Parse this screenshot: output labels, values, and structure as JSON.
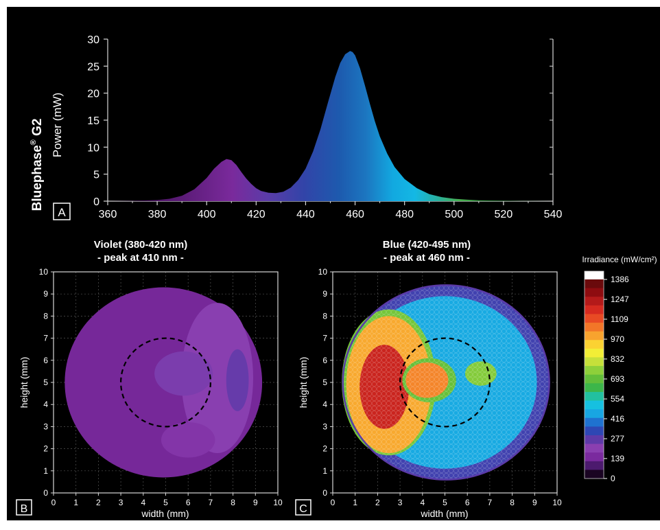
{
  "figure": {
    "background": "#000000",
    "panel_labels": [
      "A",
      "B",
      "C"
    ]
  },
  "chart_data": [
    {
      "type": "area",
      "panel": "A",
      "device_label": "Bluephase",
      "device_label_super": "®",
      "device_label_suffix": " G2",
      "ylabel": "Power (mW)",
      "xlim": [
        360,
        540
      ],
      "ylim": [
        0,
        30
      ],
      "xticks": [
        360,
        380,
        400,
        420,
        440,
        460,
        480,
        500,
        520,
        540
      ],
      "yticks": [
        0,
        5,
        10,
        15,
        20,
        25,
        30
      ],
      "x": [
        360,
        370,
        380,
        385,
        390,
        395,
        400,
        403,
        406,
        408,
        410,
        412,
        414,
        416,
        418,
        420,
        422,
        425,
        428,
        431,
        434,
        437,
        440,
        443,
        446,
        449,
        452,
        454,
        456,
        458,
        459,
        460,
        462,
        464,
        466,
        468,
        470,
        473,
        476,
        480,
        485,
        490,
        495,
        500,
        505,
        510,
        520,
        530,
        540
      ],
      "y": [
        0.0,
        0.05,
        0.2,
        0.45,
        1.0,
        2.2,
        4.3,
        6.0,
        7.3,
        7.8,
        7.6,
        6.7,
        5.4,
        4.2,
        3.2,
        2.4,
        1.9,
        1.55,
        1.5,
        1.75,
        2.5,
        3.9,
        6.0,
        9.2,
        13.3,
        18.2,
        23.0,
        25.6,
        27.2,
        27.8,
        27.6,
        27.0,
        24.6,
        21.4,
        18.0,
        14.8,
        12.0,
        8.8,
        6.3,
        4.1,
        2.4,
        1.3,
        0.75,
        0.45,
        0.28,
        0.17,
        0.07,
        0.03,
        0.0
      ]
    },
    {
      "type": "heatmap",
      "panel": "B",
      "title": "Violet (380-420 nm)",
      "subtitle": "- peak at 410 nm -",
      "xlabel": "width (mm)",
      "ylabel": "height (mm)",
      "xlim": [
        0,
        10
      ],
      "ylim": [
        0,
        10
      ],
      "xticks": [
        0,
        1,
        2,
        3,
        4,
        5,
        6,
        7,
        8,
        9,
        10
      ],
      "yticks": [
        0,
        1,
        2,
        3,
        4,
        5,
        6,
        7,
        8,
        9,
        10
      ],
      "beam_center": [
        5.0,
        5.0
      ],
      "beam_radius_x": 4.4,
      "beam_radius_y": 4.3,
      "reference_circle": {
        "center": [
          5,
          5
        ],
        "radius": 2
      },
      "regions": [
        {
          "type": "disc",
          "cx": 4.9,
          "cy": 5.0,
          "rx": 4.4,
          "ry": 4.3,
          "irradiance": 120
        },
        {
          "type": "disc",
          "cx": 7.3,
          "cy": 5.2,
          "rx": 1.6,
          "ry": 3.4,
          "irradiance": 190
        },
        {
          "type": "disc",
          "cx": 5.8,
          "cy": 5.4,
          "rx": 1.3,
          "ry": 1.0,
          "irradiance": 210
        },
        {
          "type": "disc",
          "cx": 8.2,
          "cy": 5.1,
          "rx": 0.5,
          "ry": 1.4,
          "irradiance": 240
        },
        {
          "type": "disc",
          "cx": 6.0,
          "cy": 2.4,
          "rx": 1.2,
          "ry": 0.8,
          "irradiance": 160
        }
      ]
    },
    {
      "type": "heatmap",
      "panel": "C",
      "title": "Blue (420-495 nm)",
      "subtitle": "- peak at 460 nm -",
      "xlabel": "width (mm)",
      "ylabel": "height (mm)",
      "xlim": [
        0,
        10
      ],
      "ylim": [
        0,
        10
      ],
      "xticks": [
        0,
        1,
        2,
        3,
        4,
        5,
        6,
        7,
        8,
        9,
        10
      ],
      "yticks": [
        0,
        1,
        2,
        3,
        4,
        5,
        6,
        7,
        8,
        9,
        10
      ],
      "beam_center": [
        5.05,
        5.0
      ],
      "beam_radius_x": 4.6,
      "beam_radius_y": 4.4,
      "reference_circle": {
        "center": [
          5,
          5
        ],
        "radius": 2
      },
      "regions": [
        {
          "type": "disc",
          "cx": 5.05,
          "cy": 5.0,
          "rx": 4.6,
          "ry": 4.4,
          "irradiance": 290
        },
        {
          "type": "disc",
          "cx": 5.0,
          "cy": 5.0,
          "rx": 4.1,
          "ry": 3.9,
          "irradiance": 450
        },
        {
          "type": "disc",
          "cx": 2.5,
          "cy": 5.0,
          "rx": 2.1,
          "ry": 3.3,
          "irradiance": 720
        },
        {
          "type": "disc",
          "cx": 2.5,
          "cy": 4.9,
          "rx": 1.9,
          "ry": 3.1,
          "irradiance": 1000
        },
        {
          "type": "disc",
          "cx": 2.3,
          "cy": 4.8,
          "rx": 1.1,
          "ry": 1.9,
          "irradiance": 1220
        },
        {
          "type": "disc",
          "cx": 4.3,
          "cy": 5.1,
          "rx": 1.2,
          "ry": 1.0,
          "irradiance": 700
        },
        {
          "type": "disc",
          "cx": 4.2,
          "cy": 5.1,
          "rx": 0.95,
          "ry": 0.8,
          "irradiance": 1050
        },
        {
          "type": "disc",
          "cx": 6.6,
          "cy": 5.4,
          "rx": 0.7,
          "ry": 0.55,
          "irradiance": 740
        }
      ]
    }
  ],
  "colorbar": {
    "title": "Irradiance (mW/cm²)",
    "ticks": [
      0,
      139,
      277,
      416,
      554,
      693,
      832,
      970,
      1109,
      1247,
      1386
    ],
    "max": 1386,
    "overflow_color": "#ffffff",
    "colors": [
      "#1a0422",
      "#4c1a6e",
      "#7a2a9e",
      "#8a3fb0",
      "#5e3aa8",
      "#2e47b4",
      "#1f72d0",
      "#18a6e2",
      "#16c0e0",
      "#22c0a0",
      "#3cb64a",
      "#62be3a",
      "#8ed03a",
      "#c6e03a",
      "#f2ee36",
      "#fbd232",
      "#f8a32e",
      "#f27628",
      "#e84a24",
      "#d62a20",
      "#b41a1a",
      "#8e0c10",
      "#6a0a0c"
    ]
  }
}
